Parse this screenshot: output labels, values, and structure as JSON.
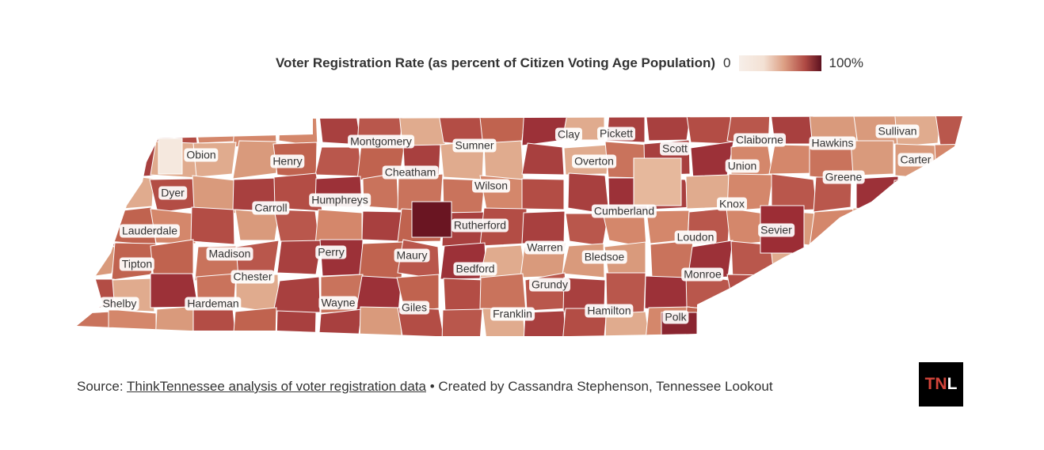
{
  "legend": {
    "title": "Voter Registration Rate (as percent of Citizen Voting Age Population)",
    "min_label": "0",
    "max_label": "100%",
    "color_low": "#f7efe9",
    "color_high": "#5c111f"
  },
  "counties": [
    "Obion",
    "Montgomery",
    "Sumner",
    "Clay",
    "Pickett",
    "Scott",
    "Claiborne",
    "Hawkins",
    "Sullivan",
    "Henry",
    "Cheatham",
    "Overton",
    "Union",
    "Carter",
    "Dyer",
    "Wilson",
    "Greene",
    "Humphreys",
    "Carroll",
    "Cumberland",
    "Knox",
    "Lauderdale",
    "Rutherford",
    "Sevier",
    "Loudon",
    "Madison",
    "Perry",
    "Maury",
    "Warren",
    "Bledsoe",
    "Tipton",
    "Bedford",
    "Chester",
    "Monroe",
    "Grundy",
    "Shelby",
    "Hardeman",
    "Wayne",
    "Giles",
    "Hamilton",
    "Franklin",
    "Polk"
  ],
  "footer": {
    "prefix": "Source: ",
    "link": "ThinkTennessee analysis of voter registration data",
    "suffix": " • Created by Cassandra Stephenson, Tennessee Lookout"
  },
  "logo": {
    "part1": "TN",
    "part2": "L"
  }
}
